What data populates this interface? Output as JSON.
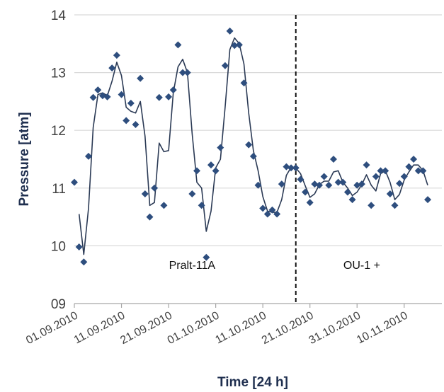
{
  "chart_data": {
    "type": "scatter",
    "title": "",
    "xlabel": "Time [24 h]",
    "ylabel": "Pressure [atm]",
    "ylim": [
      9,
      14
    ],
    "xlim": [
      "2010-09-01",
      "2010-11-18"
    ],
    "yticks": [
      "09",
      "10",
      "11",
      "12",
      "13",
      "14"
    ],
    "xticks": [
      {
        "date": "2010-09-01",
        "label": "01.09.2010"
      },
      {
        "date": "2010-09-11",
        "label": "11.09.2010"
      },
      {
        "date": "2010-09-21",
        "label": "21.09.2010"
      },
      {
        "date": "2010-10-01",
        "label": "01.10.2010"
      },
      {
        "date": "2010-10-11",
        "label": "11.10.2010"
      },
      {
        "date": "2010-10-21",
        "label": "21.10.2010"
      },
      {
        "date": "2010-10-31",
        "label": "31.10.2010"
      },
      {
        "date": "2010-11-10",
        "label": "10.11.2010"
      }
    ],
    "grid": "horizontal",
    "colors": {
      "markers": "#2e4e7e",
      "line": "#2b3a55",
      "grid": "#d9d9d9"
    },
    "series": [
      {
        "kind": "points",
        "points": [
          {
            "x": "2010-09-01",
            "y": 11.1
          },
          {
            "x": "2010-09-02",
            "y": 9.98
          },
          {
            "x": "2010-09-03",
            "y": 9.72
          },
          {
            "x": "2010-09-04",
            "y": 11.55
          },
          {
            "x": "2010-09-05",
            "y": 12.57
          },
          {
            "x": "2010-09-06",
            "y": 12.7
          },
          {
            "x": "2010-09-07",
            "y": 12.6
          },
          {
            "x": "2010-09-08",
            "y": 12.58
          },
          {
            "x": "2010-09-09",
            "y": 13.08
          },
          {
            "x": "2010-09-10",
            "y": 13.3
          },
          {
            "x": "2010-09-11",
            "y": 12.62
          },
          {
            "x": "2010-09-12",
            "y": 12.17
          },
          {
            "x": "2010-09-13",
            "y": 12.47
          },
          {
            "x": "2010-09-14",
            "y": 12.1
          },
          {
            "x": "2010-09-15",
            "y": 12.9
          },
          {
            "x": "2010-09-16",
            "y": 10.9
          },
          {
            "x": "2010-09-17",
            "y": 10.5
          },
          {
            "x": "2010-09-18",
            "y": 11.0
          },
          {
            "x": "2010-09-19",
            "y": 12.57
          },
          {
            "x": "2010-09-20",
            "y": 10.7
          },
          {
            "x": "2010-09-21",
            "y": 12.58
          },
          {
            "x": "2010-09-22",
            "y": 12.7
          },
          {
            "x": "2010-09-23",
            "y": 13.48
          },
          {
            "x": "2010-09-24",
            "y": 13.0
          },
          {
            "x": "2010-09-25",
            "y": 13.0
          },
          {
            "x": "2010-09-26",
            "y": 10.9
          },
          {
            "x": "2010-09-27",
            "y": 11.3
          },
          {
            "x": "2010-09-28",
            "y": 10.7
          },
          {
            "x": "2010-09-29",
            "y": 9.8
          },
          {
            "x": "2010-09-30",
            "y": 11.4
          },
          {
            "x": "2010-10-01",
            "y": 11.3
          },
          {
            "x": "2010-10-02",
            "y": 11.7
          },
          {
            "x": "2010-10-03",
            "y": 13.12
          },
          {
            "x": "2010-10-04",
            "y": 13.72
          },
          {
            "x": "2010-10-05",
            "y": 13.47
          },
          {
            "x": "2010-10-06",
            "y": 13.48
          },
          {
            "x": "2010-10-07",
            "y": 12.82
          },
          {
            "x": "2010-10-08",
            "y": 11.75
          },
          {
            "x": "2010-10-09",
            "y": 11.55
          },
          {
            "x": "2010-10-10",
            "y": 11.05
          },
          {
            "x": "2010-10-11",
            "y": 10.65
          },
          {
            "x": "2010-10-12",
            "y": 10.55
          },
          {
            "x": "2010-10-13",
            "y": 10.62
          },
          {
            "x": "2010-10-14",
            "y": 10.55
          },
          {
            "x": "2010-10-15",
            "y": 11.07
          },
          {
            "x": "2010-10-16",
            "y": 11.37
          },
          {
            "x": "2010-10-17",
            "y": 11.35
          },
          {
            "x": "2010-10-18",
            "y": 11.35
          },
          {
            "x": "2010-10-19",
            "y": 11.15
          },
          {
            "x": "2010-10-20",
            "y": 10.93
          },
          {
            "x": "2010-10-21",
            "y": 10.75
          },
          {
            "x": "2010-10-22",
            "y": 11.07
          },
          {
            "x": "2010-10-23",
            "y": 11.05
          },
          {
            "x": "2010-10-24",
            "y": 11.2
          },
          {
            "x": "2010-10-25",
            "y": 11.05
          },
          {
            "x": "2010-10-26",
            "y": 11.5
          },
          {
            "x": "2010-10-27",
            "y": 11.1
          },
          {
            "x": "2010-10-28",
            "y": 11.1
          },
          {
            "x": "2010-10-29",
            "y": 10.93
          },
          {
            "x": "2010-10-30",
            "y": 10.8
          },
          {
            "x": "2010-10-31",
            "y": 11.05
          },
          {
            "x": "2010-11-01",
            "y": 11.07
          },
          {
            "x": "2010-11-02",
            "y": 11.4
          },
          {
            "x": "2010-11-03",
            "y": 10.7
          },
          {
            "x": "2010-11-04",
            "y": 11.2
          },
          {
            "x": "2010-11-05",
            "y": 11.3
          },
          {
            "x": "2010-11-06",
            "y": 11.3
          },
          {
            "x": "2010-11-07",
            "y": 10.9
          },
          {
            "x": "2010-11-08",
            "y": 10.7
          },
          {
            "x": "2010-11-09",
            "y": 11.08
          },
          {
            "x": "2010-11-10",
            "y": 11.2
          },
          {
            "x": "2010-11-11",
            "y": 11.37
          },
          {
            "x": "2010-11-12",
            "y": 11.5
          },
          {
            "x": "2010-11-13",
            "y": 11.3
          },
          {
            "x": "2010-11-14",
            "y": 11.3
          },
          {
            "x": "2010-11-15",
            "y": 10.8
          }
        ]
      },
      {
        "kind": "line",
        "points": [
          {
            "x": "2010-09-02",
            "y": 10.55
          },
          {
            "x": "2010-09-03",
            "y": 9.85
          },
          {
            "x": "2010-09-04",
            "y": 10.65
          },
          {
            "x": "2010-09-05",
            "y": 12.05
          },
          {
            "x": "2010-09-06",
            "y": 12.62
          },
          {
            "x": "2010-09-07",
            "y": 12.65
          },
          {
            "x": "2010-09-08",
            "y": 12.6
          },
          {
            "x": "2010-09-09",
            "y": 12.85
          },
          {
            "x": "2010-09-10",
            "y": 13.18
          },
          {
            "x": "2010-09-11",
            "y": 12.95
          },
          {
            "x": "2010-09-12",
            "y": 12.4
          },
          {
            "x": "2010-09-13",
            "y": 12.33
          },
          {
            "x": "2010-09-14",
            "y": 12.3
          },
          {
            "x": "2010-09-15",
            "y": 12.5
          },
          {
            "x": "2010-09-16",
            "y": 11.9
          },
          {
            "x": "2010-09-17",
            "y": 10.7
          },
          {
            "x": "2010-09-18",
            "y": 10.75
          },
          {
            "x": "2010-09-19",
            "y": 11.78
          },
          {
            "x": "2010-09-20",
            "y": 11.63
          },
          {
            "x": "2010-09-21",
            "y": 11.65
          },
          {
            "x": "2010-09-22",
            "y": 12.65
          },
          {
            "x": "2010-09-23",
            "y": 13.1
          },
          {
            "x": "2010-09-24",
            "y": 13.23
          },
          {
            "x": "2010-09-25",
            "y": 13.0
          },
          {
            "x": "2010-09-26",
            "y": 11.95
          },
          {
            "x": "2010-09-27",
            "y": 11.1
          },
          {
            "x": "2010-09-28",
            "y": 11.0
          },
          {
            "x": "2010-09-29",
            "y": 10.25
          },
          {
            "x": "2010-09-30",
            "y": 10.6
          },
          {
            "x": "2010-10-01",
            "y": 11.35
          },
          {
            "x": "2010-10-02",
            "y": 11.5
          },
          {
            "x": "2010-10-03",
            "y": 12.4
          },
          {
            "x": "2010-10-04",
            "y": 13.4
          },
          {
            "x": "2010-10-05",
            "y": 13.6
          },
          {
            "x": "2010-10-06",
            "y": 13.5
          },
          {
            "x": "2010-10-07",
            "y": 13.15
          },
          {
            "x": "2010-10-08",
            "y": 12.3
          },
          {
            "x": "2010-10-09",
            "y": 11.65
          },
          {
            "x": "2010-10-10",
            "y": 11.3
          },
          {
            "x": "2010-10-11",
            "y": 10.85
          },
          {
            "x": "2010-10-12",
            "y": 10.6
          },
          {
            "x": "2010-10-13",
            "y": 10.58
          },
          {
            "x": "2010-10-14",
            "y": 10.58
          },
          {
            "x": "2010-10-15",
            "y": 10.8
          },
          {
            "x": "2010-10-16",
            "y": 11.22
          },
          {
            "x": "2010-10-17",
            "y": 11.36
          },
          {
            "x": "2010-10-18",
            "y": 11.35
          },
          {
            "x": "2010-10-19",
            "y": 11.25
          },
          {
            "x": "2010-10-20",
            "y": 11.04
          },
          {
            "x": "2010-10-21",
            "y": 10.84
          },
          {
            "x": "2010-10-22",
            "y": 10.9
          },
          {
            "x": "2010-10-23",
            "y": 11.06
          },
          {
            "x": "2010-10-24",
            "y": 11.12
          },
          {
            "x": "2010-10-25",
            "y": 11.12
          },
          {
            "x": "2010-10-26",
            "y": 11.28
          },
          {
            "x": "2010-10-27",
            "y": 11.3
          },
          {
            "x": "2010-10-28",
            "y": 11.1
          },
          {
            "x": "2010-10-29",
            "y": 11.0
          },
          {
            "x": "2010-10-30",
            "y": 10.87
          },
          {
            "x": "2010-10-31",
            "y": 10.93
          },
          {
            "x": "2010-11-01",
            "y": 11.06
          },
          {
            "x": "2010-11-02",
            "y": 11.23
          },
          {
            "x": "2010-11-03",
            "y": 11.05
          },
          {
            "x": "2010-11-04",
            "y": 10.95
          },
          {
            "x": "2010-11-05",
            "y": 11.25
          },
          {
            "x": "2010-11-06",
            "y": 11.3
          },
          {
            "x": "2010-11-07",
            "y": 11.1
          },
          {
            "x": "2010-11-08",
            "y": 10.8
          },
          {
            "x": "2010-11-09",
            "y": 10.89
          },
          {
            "x": "2010-11-10",
            "y": 11.14
          },
          {
            "x": "2010-11-11",
            "y": 11.28
          },
          {
            "x": "2010-11-12",
            "y": 11.4
          },
          {
            "x": "2010-11-13",
            "y": 11.4
          },
          {
            "x": "2010-11-14",
            "y": 11.3
          },
          {
            "x": "2010-11-15",
            "y": 11.05
          }
        ]
      }
    ],
    "divider": {
      "x": "2010-10-18",
      "style": "dashed"
    },
    "annotations": [
      {
        "text": "Pralt-11A",
        "x": "2010-09-26",
        "y": 9.6
      },
      {
        "text": "OU-1 +",
        "x": "2010-11-01",
        "y": 9.6
      }
    ]
  }
}
